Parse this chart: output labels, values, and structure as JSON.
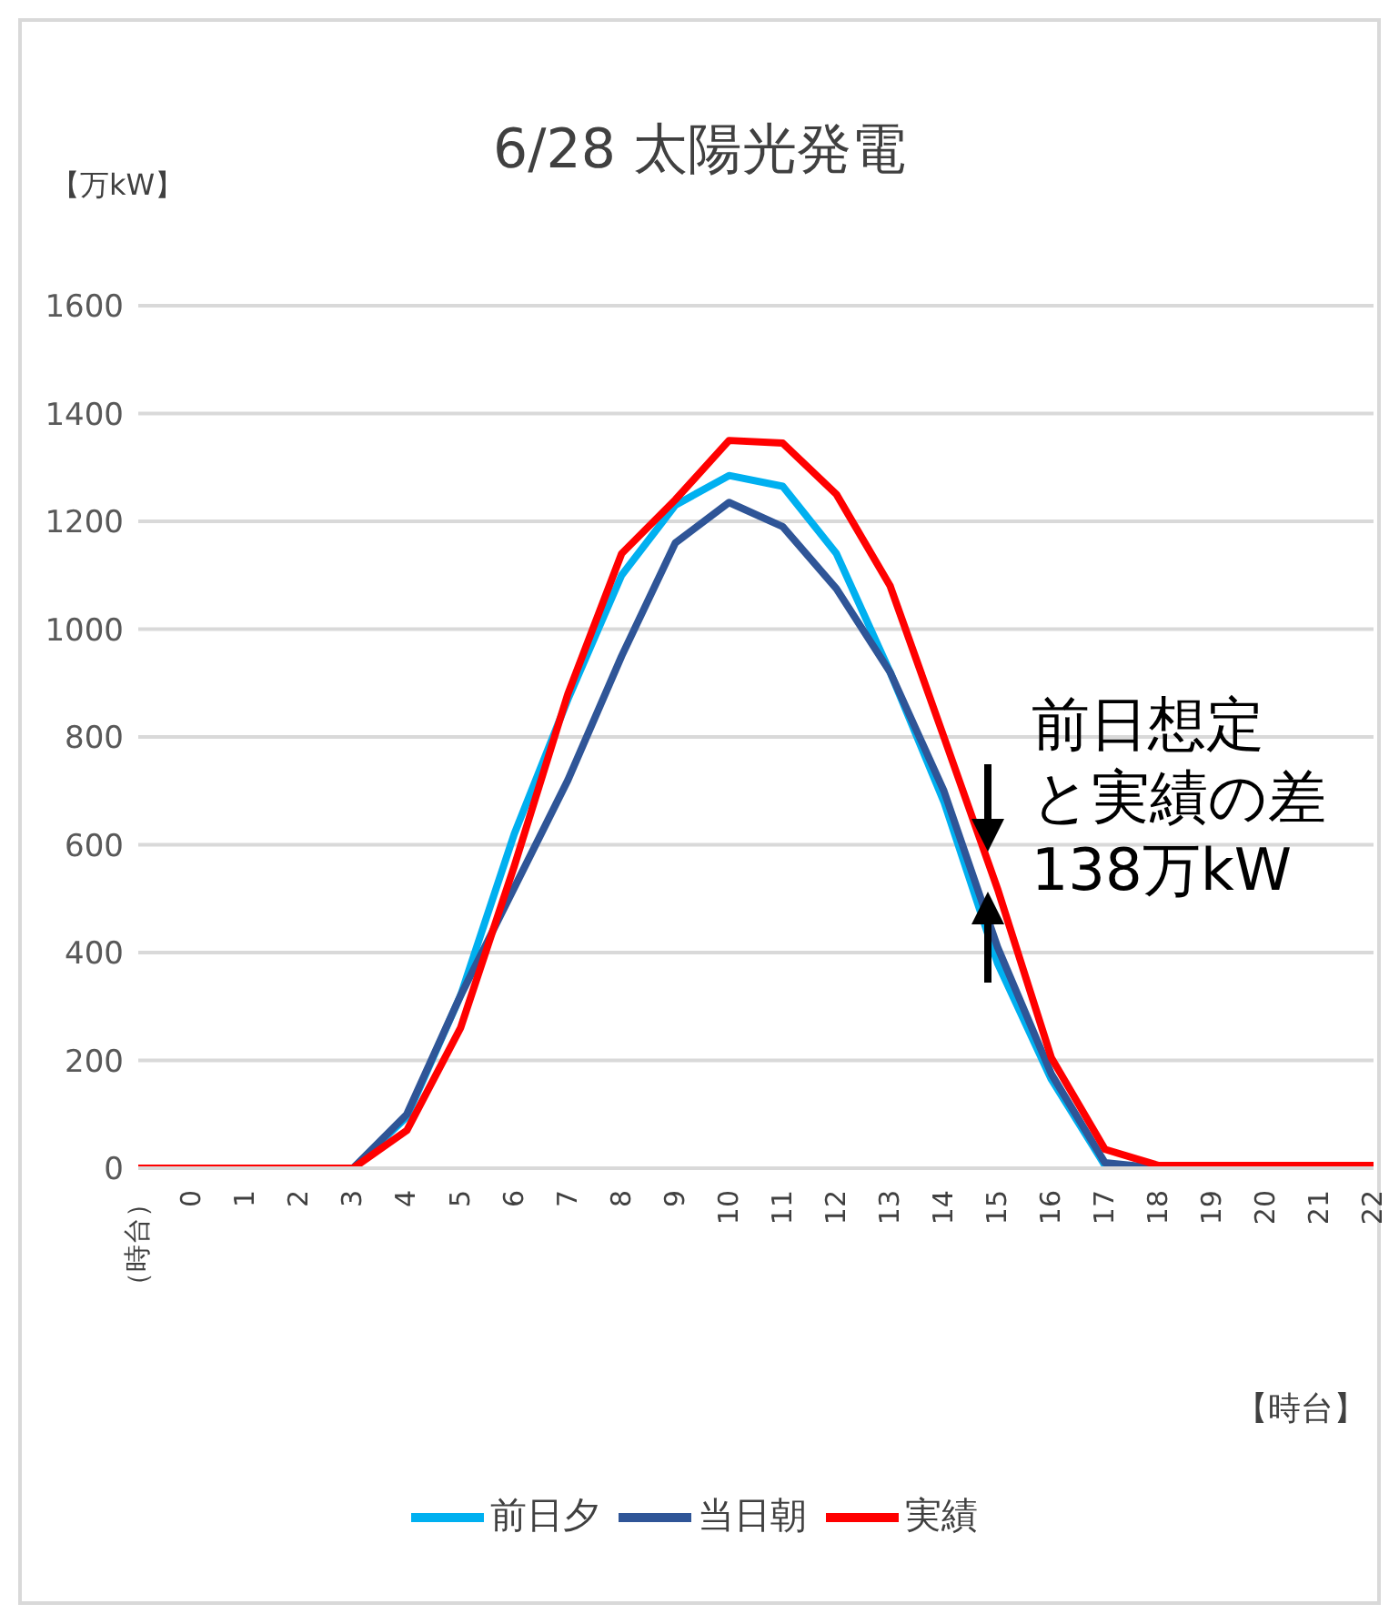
{
  "chart_data": {
    "type": "line",
    "title": "6/28 太陽光発電",
    "ylabel": "【万kW】",
    "xlabel": "【時台】",
    "categories": [
      "（時台）",
      "0",
      "1",
      "2",
      "3",
      "4",
      "5",
      "6",
      "7",
      "8",
      "9",
      "10",
      "11",
      "12",
      "13",
      "14",
      "15",
      "16",
      "17",
      "18",
      "19",
      "20",
      "21",
      "22"
    ],
    "series": [
      {
        "name": "前日夕",
        "color": "#00b0f0",
        "values": [
          null,
          null,
          null,
          null,
          0,
          95,
          320,
          620,
          870,
          1100,
          1230,
          1285,
          1265,
          1140,
          920,
          680,
          380,
          165,
          5,
          0,
          null,
          null,
          null,
          null
        ]
      },
      {
        "name": "当日朝",
        "color": "#2f5597",
        "values": [
          null,
          null,
          null,
          0,
          0,
          100,
          320,
          520,
          720,
          950,
          1160,
          1235,
          1190,
          1075,
          920,
          700,
          410,
          175,
          10,
          0,
          0,
          null,
          null,
          null
        ]
      },
      {
        "name": "実績",
        "color": "#ff0000",
        "values": [
          0,
          0,
          0,
          0,
          0,
          70,
          260,
          560,
          880,
          1140,
          1240,
          1350,
          1345,
          1250,
          1080,
          800,
          518,
          205,
          35,
          5,
          5,
          5,
          5,
          5
        ]
      }
    ],
    "ylim": [
      0,
      1600
    ],
    "yticks": [
      0,
      200,
      400,
      600,
      800,
      1000,
      1200,
      1400,
      1600
    ],
    "grid": "y",
    "legend": "bottom",
    "marker": "none",
    "line_style": "solid",
    "annotations": [
      {
        "text": "前日想定と実績の差138万kW",
        "x": "15",
        "y": 510
      }
    ]
  }
}
